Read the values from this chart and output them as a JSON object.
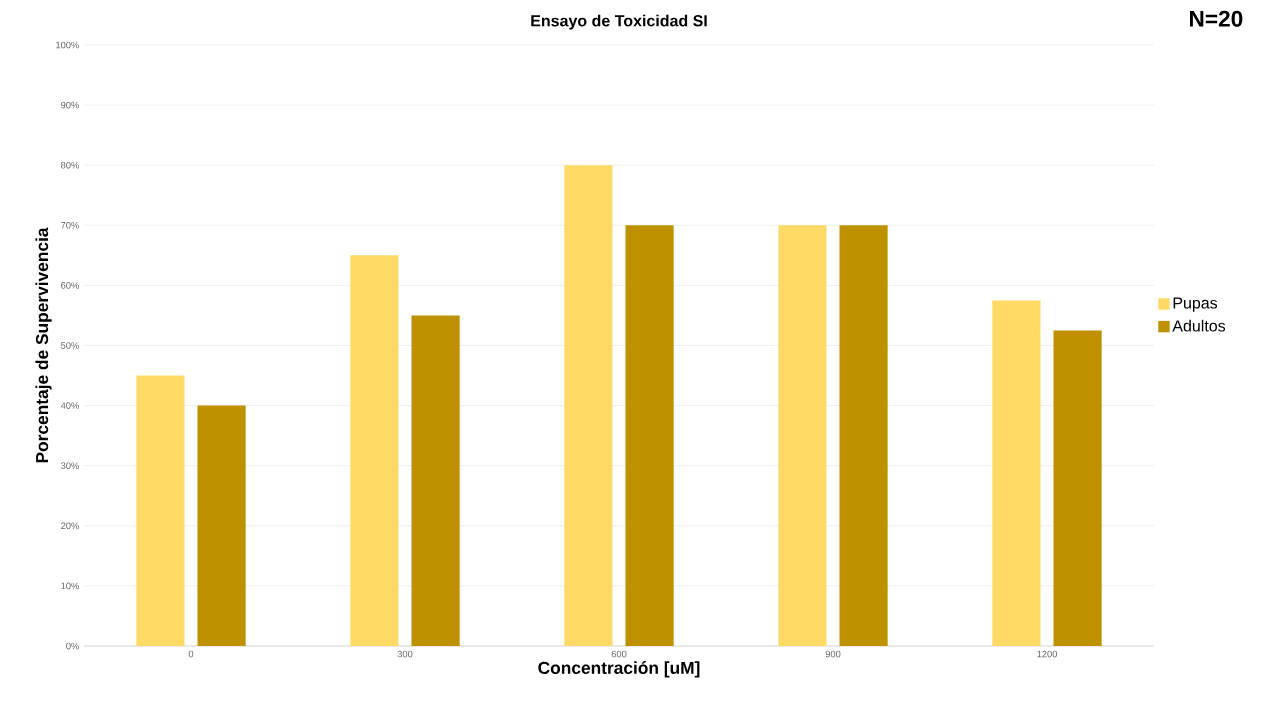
{
  "chart_data": {
    "type": "bar",
    "title": "Ensayo de Toxicidad SI",
    "xlabel": "Concentración [uM]",
    "ylabel": "Porcentaje de Supervivencia",
    "categories": [
      "0",
      "300",
      "600",
      "900",
      "1200"
    ],
    "series": [
      {
        "name": "Pupas",
        "color": "#ffd966",
        "values": [
          45,
          65,
          80,
          70,
          57.5
        ]
      },
      {
        "name": "Adultos",
        "color": "#bf9000",
        "values": [
          40,
          55,
          70,
          70,
          52.5
        ]
      }
    ],
    "ylim": [
      0,
      100
    ],
    "yticks": [
      {
        "value": 0,
        "label": "0%"
      },
      {
        "value": 10,
        "label": "10%"
      },
      {
        "value": 20,
        "label": "20%"
      },
      {
        "value": 30,
        "label": "30%"
      },
      {
        "value": 40,
        "label": "40%"
      },
      {
        "value": 50,
        "label": "50%"
      },
      {
        "value": 60,
        "label": "60%"
      },
      {
        "value": 70,
        "label": "70%"
      },
      {
        "value": 80,
        "label": "80%"
      },
      {
        "value": 90,
        "label": "90%"
      },
      {
        "value": 100,
        "label": "100%"
      }
    ],
    "grid": "y",
    "legend": "right",
    "annotations": [
      "N=20"
    ]
  }
}
